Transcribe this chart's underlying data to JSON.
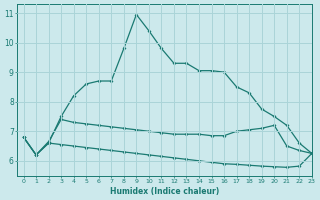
{
  "xlabel": "Humidex (Indice chaleur)",
  "bg_color": "#cce9ec",
  "grid_color": "#aad4d8",
  "line_color": "#1a7a72",
  "xlim": [
    -0.5,
    23
  ],
  "ylim": [
    5.5,
    11.3
  ],
  "x": [
    0,
    1,
    2,
    3,
    4,
    5,
    6,
    7,
    8,
    9,
    10,
    11,
    12,
    13,
    14,
    15,
    16,
    17,
    18,
    19,
    20,
    21,
    22,
    23
  ],
  "line_peak": [
    6.8,
    6.2,
    6.6,
    7.5,
    8.2,
    8.6,
    8.7,
    8.7,
    9.8,
    10.95,
    10.4,
    9.8,
    9.3,
    9.3,
    9.05,
    9.05,
    9.0,
    8.5,
    8.3,
    7.75,
    7.5,
    7.2,
    6.6,
    6.25
  ],
  "line_mid": [
    6.8,
    6.2,
    6.65,
    7.4,
    7.3,
    7.25,
    7.2,
    7.15,
    7.1,
    7.05,
    7.0,
    6.95,
    6.9,
    6.9,
    6.9,
    6.85,
    6.85,
    7.0,
    7.05,
    7.1,
    7.2,
    6.5,
    6.35,
    6.25
  ],
  "line_low": [
    6.8,
    6.2,
    6.6,
    6.55,
    6.5,
    6.45,
    6.4,
    6.35,
    6.3,
    6.25,
    6.2,
    6.15,
    6.1,
    6.05,
    6.0,
    5.95,
    5.9,
    5.88,
    5.85,
    5.82,
    5.8,
    5.78,
    5.82,
    6.25
  ],
  "xtick_labels": [
    "0",
    "1",
    "2",
    "3",
    "4",
    "5",
    "6",
    "7",
    "8",
    "9",
    "10",
    "11",
    "12",
    "13",
    "14",
    "15",
    "16",
    "17",
    "18",
    "19",
    "20",
    "21",
    "22",
    "23"
  ],
  "ytick_labels": [
    "6",
    "7",
    "8",
    "9",
    "10",
    "11"
  ],
  "yticks": [
    6,
    7,
    8,
    9,
    10,
    11
  ]
}
